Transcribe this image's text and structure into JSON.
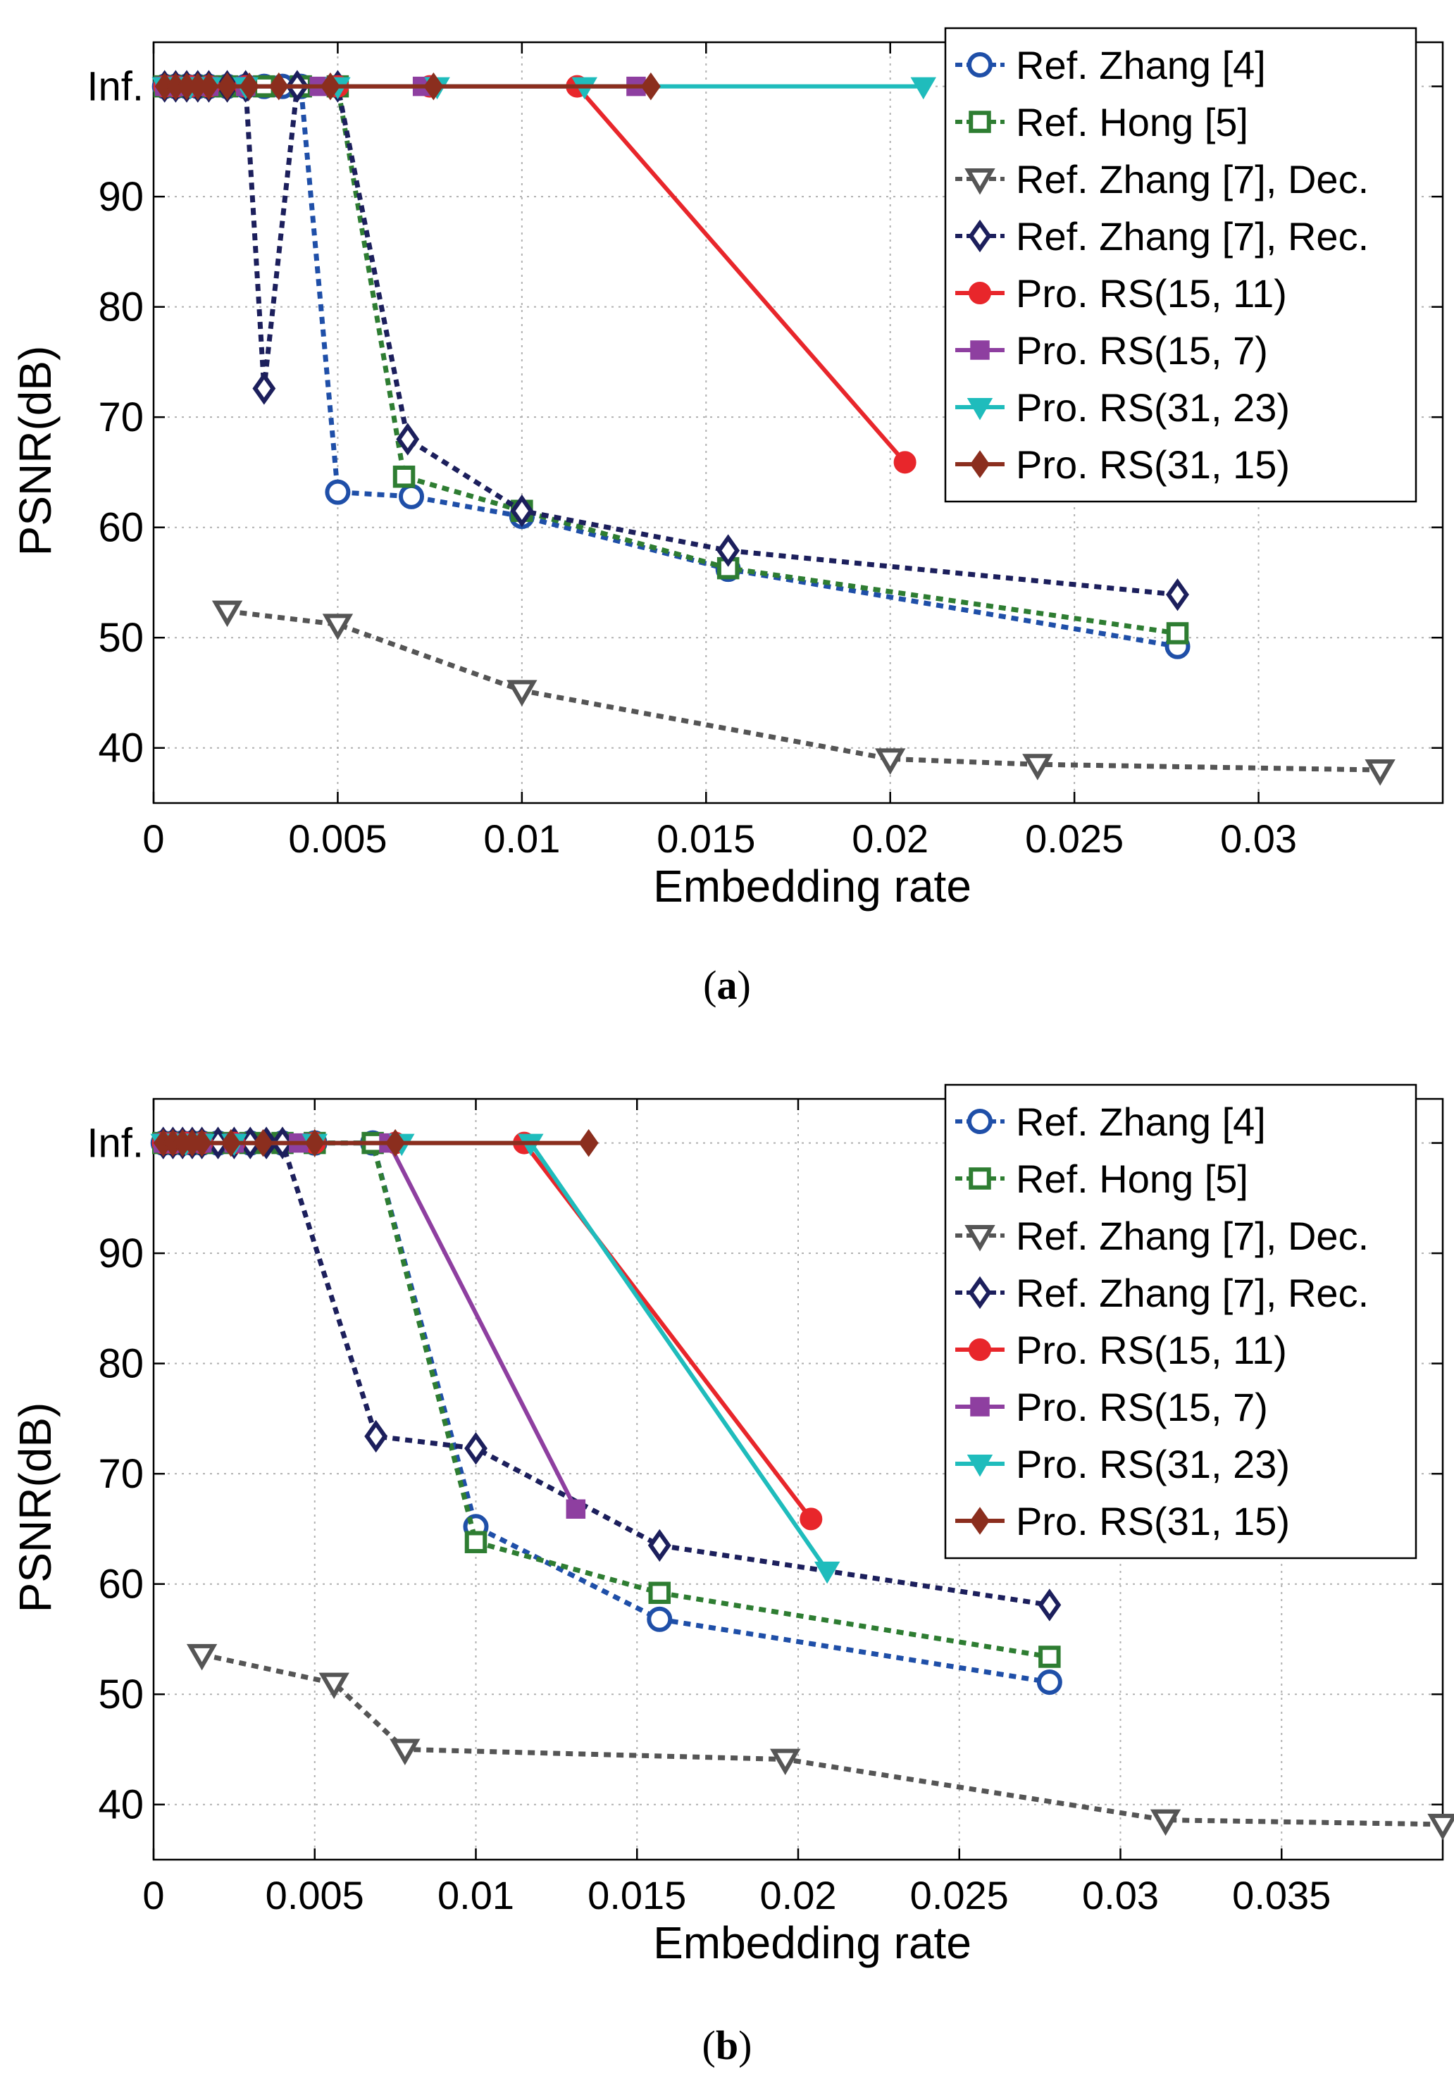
{
  "chart_data": [
    {
      "type": "line",
      "panel_label": "a",
      "xlabel": "Embedding rate",
      "ylabel": "PSNR(dB)",
      "xlim": [
        0,
        0.035
      ],
      "ylim": [
        35,
        104
      ],
      "xticks": [
        0,
        0.005,
        0.01,
        0.015,
        0.02,
        0.025,
        0.03
      ],
      "xtick_labels": [
        "0",
        "0.005",
        "0.01",
        "0.015",
        "0.02",
        "0.025",
        "0.03"
      ],
      "yticks": [
        40,
        50,
        60,
        70,
        80,
        90,
        100
      ],
      "ytick_labels": [
        "40",
        "50",
        "60",
        "70",
        "80",
        "90",
        "Inf."
      ],
      "inf_note": "Inf. plotted at y=100",
      "grid": true,
      "legend_position": "top-right",
      "series": [
        {
          "name": "Ref. Zhang [4]",
          "color": "#1f4fa8",
          "dash": true,
          "marker": "circle",
          "x": [
            0.0003,
            0.0006,
            0.0009,
            0.0012,
            0.0015,
            0.002,
            0.0025,
            0.003,
            0.0035,
            0.004,
            0.005,
            0.007,
            0.01,
            0.0156,
            0.0278
          ],
          "y": [
            100,
            100,
            100,
            100,
            100,
            100,
            100,
            100,
            100,
            100,
            63.2,
            62.8,
            61.0,
            56.2,
            49.2
          ]
        },
        {
          "name": "Ref. Hong [5]",
          "color": "#2e7d32",
          "dash": true,
          "marker": "square",
          "x": [
            0.0003,
            0.0006,
            0.0009,
            0.0012,
            0.0015,
            0.002,
            0.003,
            0.004,
            0.005,
            0.0068,
            0.01,
            0.0156,
            0.0278
          ],
          "y": [
            100,
            100,
            100,
            100,
            100,
            100,
            100,
            100,
            100,
            64.6,
            61.5,
            56.3,
            50.4
          ]
        },
        {
          "name": "Ref. Zhang [7], Dec.",
          "color": "#555555",
          "dash": true,
          "marker": "triangle-down",
          "x": [
            0.002,
            0.005,
            0.01,
            0.02,
            0.024,
            0.0333
          ],
          "y": [
            52.4,
            51.2,
            45.2,
            39.0,
            38.5,
            38.0
          ]
        },
        {
          "name": "Ref. Zhang [7], Rec.",
          "color": "#1c1f5c",
          "dash": true,
          "marker": "diamond",
          "x": [
            0.0003,
            0.0006,
            0.0009,
            0.0012,
            0.0015,
            0.002,
            0.0025,
            0.003,
            0.0039,
            0.005,
            0.0069,
            0.01,
            0.0156,
            0.0278
          ],
          "y": [
            100,
            100,
            100,
            100,
            100,
            100,
            100,
            72.6,
            100,
            100,
            68.0,
            61.5,
            57.9,
            53.9
          ]
        },
        {
          "name": "Pro. RS(15, 11)",
          "color": "#e8262b",
          "dash": false,
          "marker": "circle-filled",
          "x": [
            0.0003,
            0.0006,
            0.001,
            0.0015,
            0.0025,
            0.005,
            0.0075,
            0.0115,
            0.0204
          ],
          "y": [
            100,
            100,
            100,
            100,
            100,
            100,
            100,
            100,
            65.9
          ]
        },
        {
          "name": "Pro. RS(15, 7)",
          "color": "#8e3fa0",
          "dash": false,
          "marker": "square-filled",
          "x": [
            0.0003,
            0.0006,
            0.001,
            0.0015,
            0.0025,
            0.0045,
            0.0073,
            0.0131
          ],
          "y": [
            100,
            100,
            100,
            100,
            100,
            100,
            100,
            100
          ]
        },
        {
          "name": "Pro. RS(31, 23)",
          "color": "#1fbcbc",
          "dash": false,
          "marker": "triangle-down-filled",
          "x": [
            0.0003,
            0.0006,
            0.001,
            0.0015,
            0.0025,
            0.005,
            0.0077,
            0.0117,
            0.0209
          ],
          "y": [
            100,
            100,
            100,
            100,
            100,
            100,
            100,
            100,
            100
          ]
        },
        {
          "name": "Pro. RS(31, 15)",
          "color": "#8b2e1e",
          "dash": false,
          "marker": "diamond-filled",
          "x": [
            0.0003,
            0.0006,
            0.0009,
            0.0012,
            0.0015,
            0.002,
            0.0026,
            0.0034,
            0.0048,
            0.0076,
            0.0135
          ],
          "y": [
            100,
            100,
            100,
            100,
            100,
            100,
            100,
            100,
            100,
            100,
            100
          ]
        }
      ]
    },
    {
      "type": "line",
      "panel_label": "b",
      "xlabel": "Embedding rate",
      "ylabel": "PSNR(dB)",
      "xlim": [
        0,
        0.04
      ],
      "ylim": [
        35,
        104
      ],
      "xticks": [
        0,
        0.005,
        0.01,
        0.015,
        0.02,
        0.025,
        0.03,
        0.035
      ],
      "xtick_labels": [
        "0",
        "0.005",
        "0.01",
        "0.015",
        "0.02",
        "0.025",
        "0.03",
        "0.035"
      ],
      "yticks": [
        40,
        50,
        60,
        70,
        80,
        90,
        100
      ],
      "ytick_labels": [
        "40",
        "50",
        "60",
        "70",
        "80",
        "90",
        "Inf."
      ],
      "inf_note": "Inf. plotted at y=100",
      "grid": true,
      "legend_position": "top-right",
      "series": [
        {
          "name": "Ref. Zhang [4]",
          "color": "#1f4fa8",
          "dash": true,
          "marker": "circle",
          "x": [
            0.0003,
            0.0006,
            0.0009,
            0.0012,
            0.0015,
            0.002,
            0.003,
            0.004,
            0.005,
            0.0068,
            0.01,
            0.0157,
            0.0278
          ],
          "y": [
            100,
            100,
            100,
            100,
            100,
            100,
            100,
            100,
            100,
            100,
            65.2,
            56.8,
            51.1
          ]
        },
        {
          "name": "Ref. Hong [5]",
          "color": "#2e7d32",
          "dash": true,
          "marker": "square",
          "x": [
            0.0003,
            0.0006,
            0.0009,
            0.0012,
            0.0015,
            0.002,
            0.003,
            0.004,
            0.005,
            0.0068,
            0.01,
            0.0157,
            0.0278
          ],
          "y": [
            100,
            100,
            100,
            100,
            100,
            100,
            100,
            100,
            100,
            100,
            63.8,
            59.2,
            53.4
          ]
        },
        {
          "name": "Ref. Zhang [7], Dec.",
          "color": "#555555",
          "dash": true,
          "marker": "triangle-down",
          "x": [
            0.0015,
            0.0056,
            0.0078,
            0.0196,
            0.0314,
            0.04
          ],
          "y": [
            53.6,
            51.0,
            45.0,
            44.1,
            38.6,
            38.2
          ]
        },
        {
          "name": "Ref. Zhang [7], Rec.",
          "color": "#1c1f5c",
          "dash": true,
          "marker": "diamond",
          "x": [
            0.0003,
            0.0006,
            0.0009,
            0.0012,
            0.0015,
            0.002,
            0.0025,
            0.003,
            0.0035,
            0.004,
            0.0069,
            0.01,
            0.0157,
            0.0278
          ],
          "y": [
            100,
            100,
            100,
            100,
            100,
            100,
            100,
            100,
            100,
            100,
            73.4,
            72.3,
            63.5,
            58.1
          ]
        },
        {
          "name": "Pro. RS(15, 11)",
          "color": "#e8262b",
          "dash": false,
          "marker": "circle-filled",
          "x": [
            0.0003,
            0.0006,
            0.001,
            0.0015,
            0.0025,
            0.005,
            0.0075,
            0.0115,
            0.0204
          ],
          "y": [
            100,
            100,
            100,
            100,
            100,
            100,
            100,
            100,
            65.9
          ]
        },
        {
          "name": "Pro. RS(15, 7)",
          "color": "#8e3fa0",
          "dash": false,
          "marker": "square-filled",
          "x": [
            0.0003,
            0.0006,
            0.001,
            0.0015,
            0.0025,
            0.0045,
            0.0073,
            0.0131
          ],
          "y": [
            100,
            100,
            100,
            100,
            100,
            100,
            100,
            66.8
          ]
        },
        {
          "name": "Pro. RS(31, 23)",
          "color": "#1fbcbc",
          "dash": false,
          "marker": "triangle-down-filled",
          "x": [
            0.0003,
            0.0006,
            0.001,
            0.0015,
            0.0025,
            0.005,
            0.0077,
            0.0117,
            0.0209
          ],
          "y": [
            100,
            100,
            100,
            100,
            100,
            100,
            100,
            100,
            61.2
          ]
        },
        {
          "name": "Pro. RS(31, 15)",
          "color": "#8b2e1e",
          "dash": false,
          "marker": "diamond-filled",
          "x": [
            0.0003,
            0.0006,
            0.0009,
            0.0012,
            0.0015,
            0.0024,
            0.0034,
            0.005,
            0.0075,
            0.0135
          ],
          "y": [
            100,
            100,
            100,
            100,
            100,
            100,
            100,
            100,
            100,
            100
          ]
        }
      ]
    }
  ]
}
